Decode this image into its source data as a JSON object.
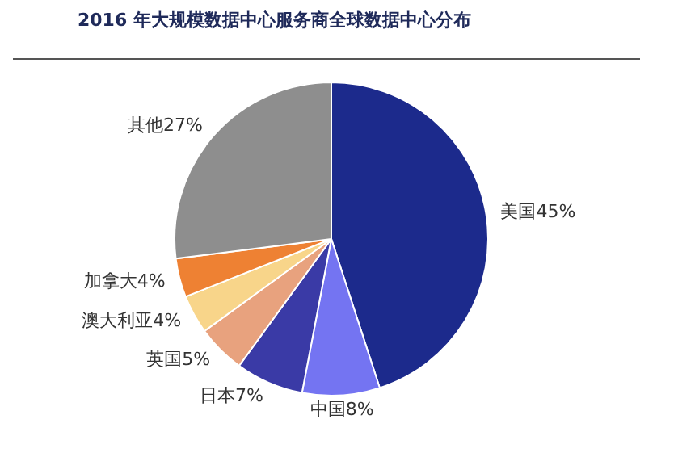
{
  "chart_data": {
    "type": "pie",
    "title": "2016 年大规模数据中心服务商全球数据中心分布",
    "categories": [
      "美国",
      "中国",
      "日本",
      "英国",
      "澳大利亚",
      "加拿大",
      "其他"
    ],
    "values": [
      45,
      8,
      7,
      5,
      4,
      4,
      27
    ],
    "value_labels": [
      "45%",
      "8%",
      "7%",
      "5%",
      "4%",
      "4%",
      "27%"
    ],
    "colors": [
      "#1c2a8c",
      "#7474f2",
      "#3a3aa6",
      "#e8a27e",
      "#f8d58a",
      "#ee8133",
      "#8e8e8e"
    ]
  }
}
